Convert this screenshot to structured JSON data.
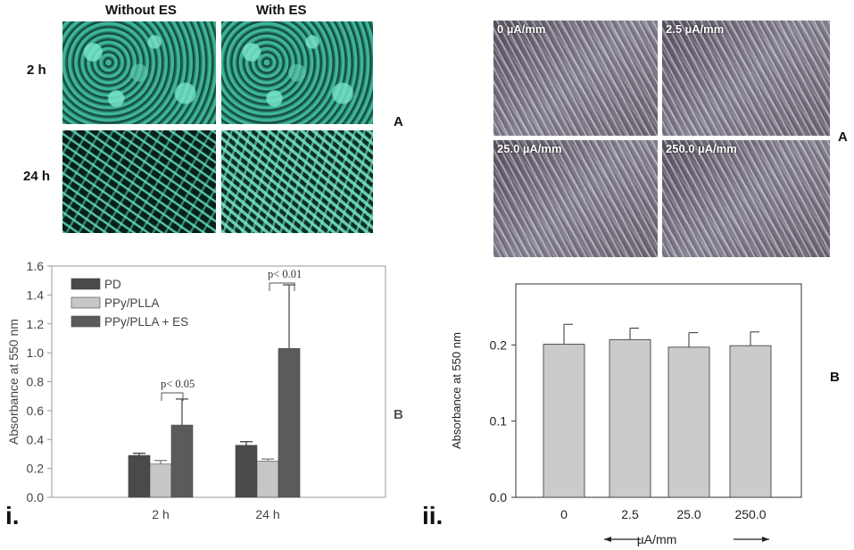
{
  "panel_i": {
    "col_labels": [
      "Without ES",
      "With ES"
    ],
    "row_labels": [
      "2 h",
      "24 h"
    ],
    "letter_a": "A",
    "letter_b": "B",
    "roman": "i."
  },
  "panel_ii": {
    "micro_labels": [
      "0 µA/mm",
      "2.5 µA/mm",
      "25.0 µA/mm",
      "250.0 µA/mm"
    ],
    "letter_a": "A",
    "letter_b": "B",
    "roman": "ii."
  },
  "chart_data": [
    {
      "type": "bar",
      "ylabel": "Absorbance at 550 nm",
      "xlabel": "",
      "categories": [
        "2 h",
        "24 h"
      ],
      "ylim": [
        0,
        1.6
      ],
      "yticks": [
        "0.0",
        "0.2",
        "0.4",
        "0.6",
        "0.8",
        "1.0",
        "1.2",
        "1.4",
        "1.6"
      ],
      "legend_position": "top-left",
      "series": [
        {
          "name": "PD",
          "color": "#4a4a4a",
          "values": [
            0.29,
            0.36
          ],
          "errors": [
            0.015,
            0.025
          ]
        },
        {
          "name": "PPy/PLLA",
          "color": "#c6c6c6",
          "values": [
            0.23,
            0.25
          ],
          "errors": [
            0.025,
            0.015
          ]
        },
        {
          "name": "PPy/PLLA + ES",
          "color": "#5b5b5b",
          "values": [
            0.5,
            1.03
          ],
          "errors": [
            0.18,
            0.44
          ]
        }
      ],
      "annotations": [
        "p< 0.05",
        "p< 0.01"
      ]
    },
    {
      "type": "bar",
      "ylabel": "Absorbance at 550 nm",
      "xlabel": "µA/mm",
      "categories": [
        "0",
        "2.5",
        "25.0",
        "250.0"
      ],
      "ylim": [
        0,
        0.28
      ],
      "yticks": [
        "0.0",
        "0.1",
        "0.2"
      ],
      "series": [
        {
          "color": "#cbcbcb",
          "values": [
            0.201,
            0.207,
            0.197,
            0.199
          ],
          "errors": [
            0.026,
            0.015,
            0.019,
            0.018
          ]
        }
      ]
    }
  ]
}
